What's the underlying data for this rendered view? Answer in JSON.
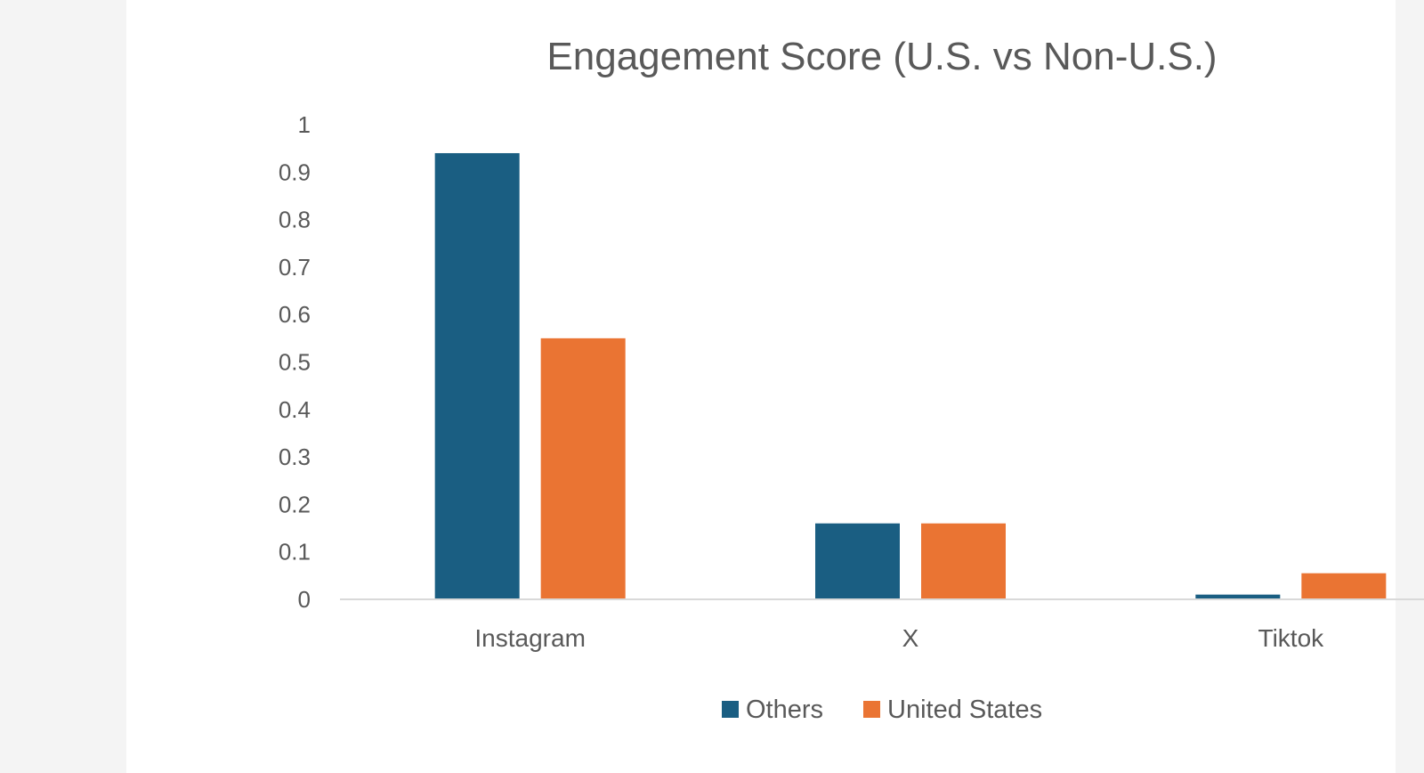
{
  "chart_data": {
    "type": "bar",
    "title": "Engagement Score (U.S. vs Non-U.S.)",
    "xlabel": "",
    "ylabel": "",
    "categories": [
      "Instagram",
      "X",
      "Tiktok"
    ],
    "series": [
      {
        "name": "Others",
        "values": [
          0.94,
          0.16,
          0.01
        ],
        "color": "#1a5e82"
      },
      {
        "name": "United States",
        "values": [
          0.55,
          0.16,
          0.055
        ],
        "color": "#ea7433"
      }
    ],
    "ylim": [
      0,
      1
    ],
    "yticks": [
      0,
      0.1,
      0.2,
      0.3,
      0.4,
      0.5,
      0.6,
      0.7,
      0.8,
      0.9,
      1
    ],
    "ytick_labels": [
      "0",
      "0.1",
      "0.2",
      "0.3",
      "0.4",
      "0.5",
      "0.6",
      "0.7",
      "0.8",
      "0.9",
      "1"
    ],
    "grid": false,
    "legend_position": "bottom"
  }
}
